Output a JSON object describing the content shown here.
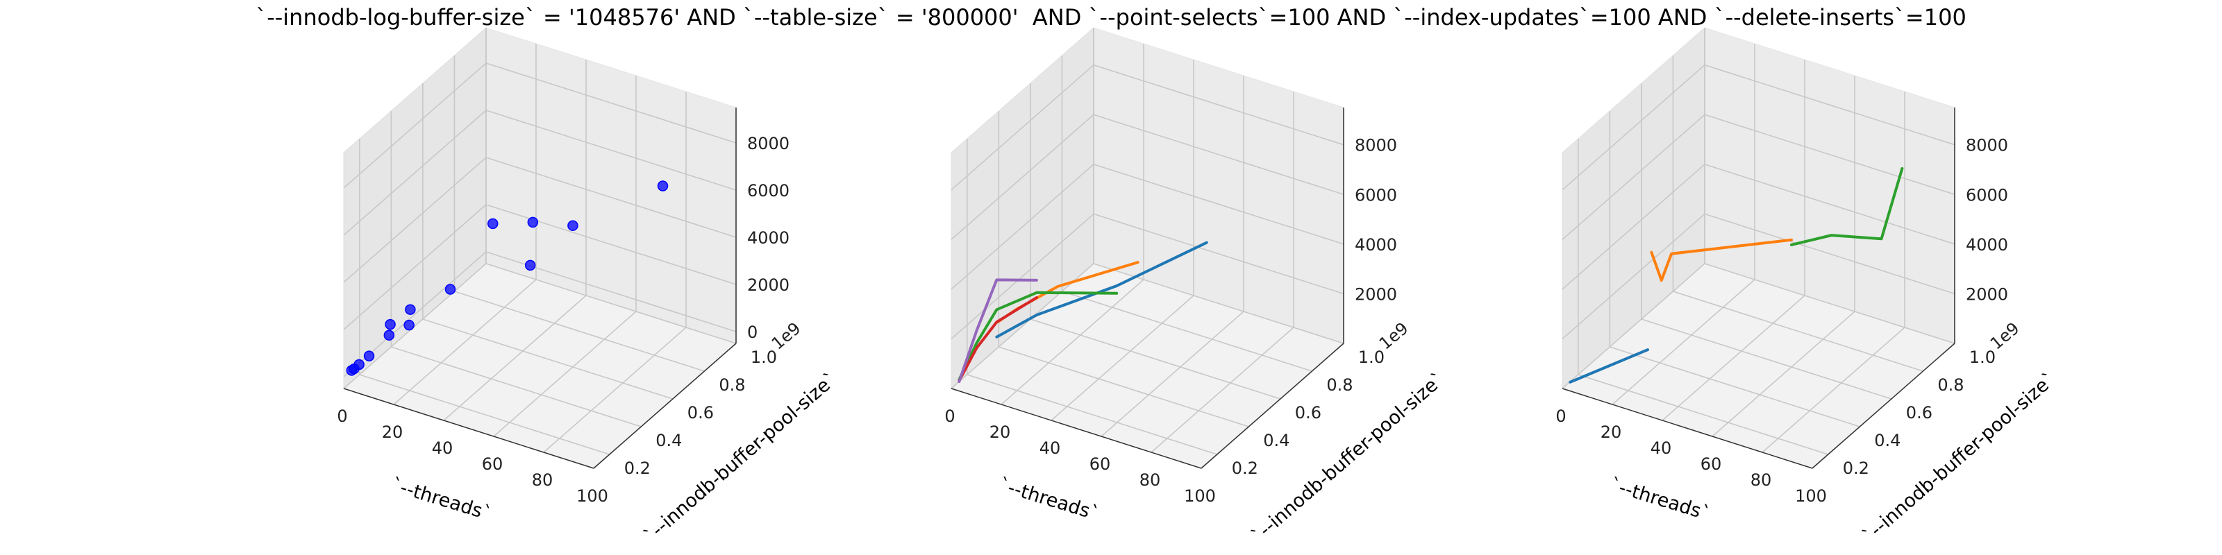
{
  "title": "`--innodb-log-buffer-size` = '1048576' AND `--table-size` = '800000'  AND `--point-selects`=100 AND `--index-updates`=100 AND `--delete-inserts`=100",
  "chart_data": [
    {
      "type": "scatter",
      "marker_color": "#0000ff",
      "xlabel": "`--threads`",
      "ylabel": "`--innodb-buffer-pool-size`",
      "zlabel": "",
      "xlim": [
        0,
        100
      ],
      "ylim": [
        0.1,
        1.0
      ],
      "zlim": [
        -500,
        9500
      ],
      "xticks": [
        "0",
        "20",
        "40",
        "60",
        "80",
        "100"
      ],
      "yticks": [
        "0.2",
        "0.4",
        "0.6",
        "0.8",
        "1.0"
      ],
      "zticks": [
        "0",
        "2000",
        "4000",
        "6000",
        "8000"
      ],
      "ytick_offset_label": "1e9",
      "points": [
        {
          "x": 1,
          "y": 0.134,
          "z": 100
        },
        {
          "x": 2,
          "y": 0.134,
          "z": 200
        },
        {
          "x": 4,
          "y": 0.134,
          "z": 450
        },
        {
          "x": 8,
          "y": 0.134,
          "z": 950
        },
        {
          "x": 16,
          "y": 0.134,
          "z": 2100
        },
        {
          "x": 16,
          "y": 0.268,
          "z": 2400
        },
        {
          "x": 32,
          "y": 0.268,
          "z": 3800
        },
        {
          "x": 24,
          "y": 0.134,
          "z": 2800
        },
        {
          "x": 8,
          "y": 0.268,
          "z": 1500
        },
        {
          "x": 64,
          "y": 0.268,
          "z": 5900
        },
        {
          "x": 32,
          "y": 0.537,
          "z": 5000
        },
        {
          "x": 48,
          "y": 0.537,
          "z": 5600
        },
        {
          "x": 64,
          "y": 0.537,
          "z": 6000
        },
        {
          "x": 100,
          "y": 0.537,
          "z": 8900
        }
      ]
    },
    {
      "type": "line",
      "xlabel": "`--threads`",
      "ylabel": "`--innodb-buffer-pool-size`",
      "zlabel": "",
      "xlim": [
        0,
        100
      ],
      "ylim": [
        0.1,
        1.0
      ],
      "zlim": [
        0,
        9500
      ],
      "xticks": [
        "0",
        "20",
        "40",
        "60",
        "80",
        "100"
      ],
      "yticks": [
        "0.2",
        "0.4",
        "0.6",
        "0.8",
        "1.0"
      ],
      "zticks": [
        "2000",
        "4000",
        "6000",
        "8000"
      ],
      "ytick_offset_label": "1e9",
      "series": [
        {
          "color": "#1f77b4",
          "points": [
            [
              16,
              0.134,
              2400
            ],
            [
              32,
              0.134,
              3800
            ],
            [
              64,
              0.134,
              6000
            ],
            [
              100,
              0.134,
              8900
            ]
          ]
        },
        {
          "color": "#ff7f0e",
          "points": [
            [
              8,
              0.268,
              2000
            ],
            [
              16,
              0.268,
              2800
            ],
            [
              32,
              0.268,
              4200
            ],
            [
              64,
              0.268,
              6200
            ]
          ]
        },
        {
          "color": "#2ca02c",
          "points": [
            [
              1,
              0.134,
              200
            ],
            [
              8,
              0.134,
              1900
            ],
            [
              16,
              0.134,
              3500
            ],
            [
              32,
              0.134,
              4700
            ],
            [
              64,
              0.134,
              5700
            ]
          ]
        },
        {
          "color": "#d62728",
          "points": [
            [
              1,
              0.134,
              150
            ],
            [
              8,
              0.134,
              1700
            ],
            [
              16,
              0.134,
              3000
            ],
            [
              32,
              0.134,
              4500
            ]
          ]
        },
        {
          "color": "#9467bd",
          "points": [
            [
              1,
              0.134,
              120
            ],
            [
              8,
              0.134,
              2400
            ],
            [
              16,
              0.134,
              4700
            ],
            [
              32,
              0.134,
              5200
            ]
          ]
        }
      ]
    },
    {
      "type": "line",
      "xlabel": "`--threads`",
      "ylabel": "`--innodb-buffer-pool-size`",
      "zlabel": "",
      "xlim": [
        0,
        100
      ],
      "ylim": [
        0.1,
        1.0
      ],
      "zlim": [
        0,
        9500
      ],
      "xticks": [
        "0",
        "20",
        "40",
        "60",
        "80",
        "100"
      ],
      "yticks": [
        "0.2",
        "0.4",
        "0.6",
        "0.8",
        "1.0"
      ],
      "zticks": [
        "2000",
        "4000",
        "6000",
        "8000"
      ],
      "ytick_offset_label": "1e9",
      "series": [
        {
          "color": "#1f77b4",
          "points": [
            [
              1,
              0.134,
              100
            ],
            [
              32,
              0.134,
              2400
            ]
          ]
        },
        {
          "color": "#ff7f0e",
          "points": [
            [
              8,
              0.537,
              3300
            ],
            [
              12,
              0.537,
              2300
            ],
            [
              16,
              0.537,
              3500
            ],
            [
              32,
              0.537,
              4200
            ],
            [
              64,
              0.537,
              5600
            ]
          ]
        },
        {
          "color": "#2ca02c",
          "points": [
            [
              64,
              0.537,
              5400
            ],
            [
              80,
              0.537,
              6300
            ],
            [
              100,
              0.537,
              6800
            ],
            [
              100,
              0.668,
              8900
            ]
          ]
        }
      ]
    }
  ]
}
